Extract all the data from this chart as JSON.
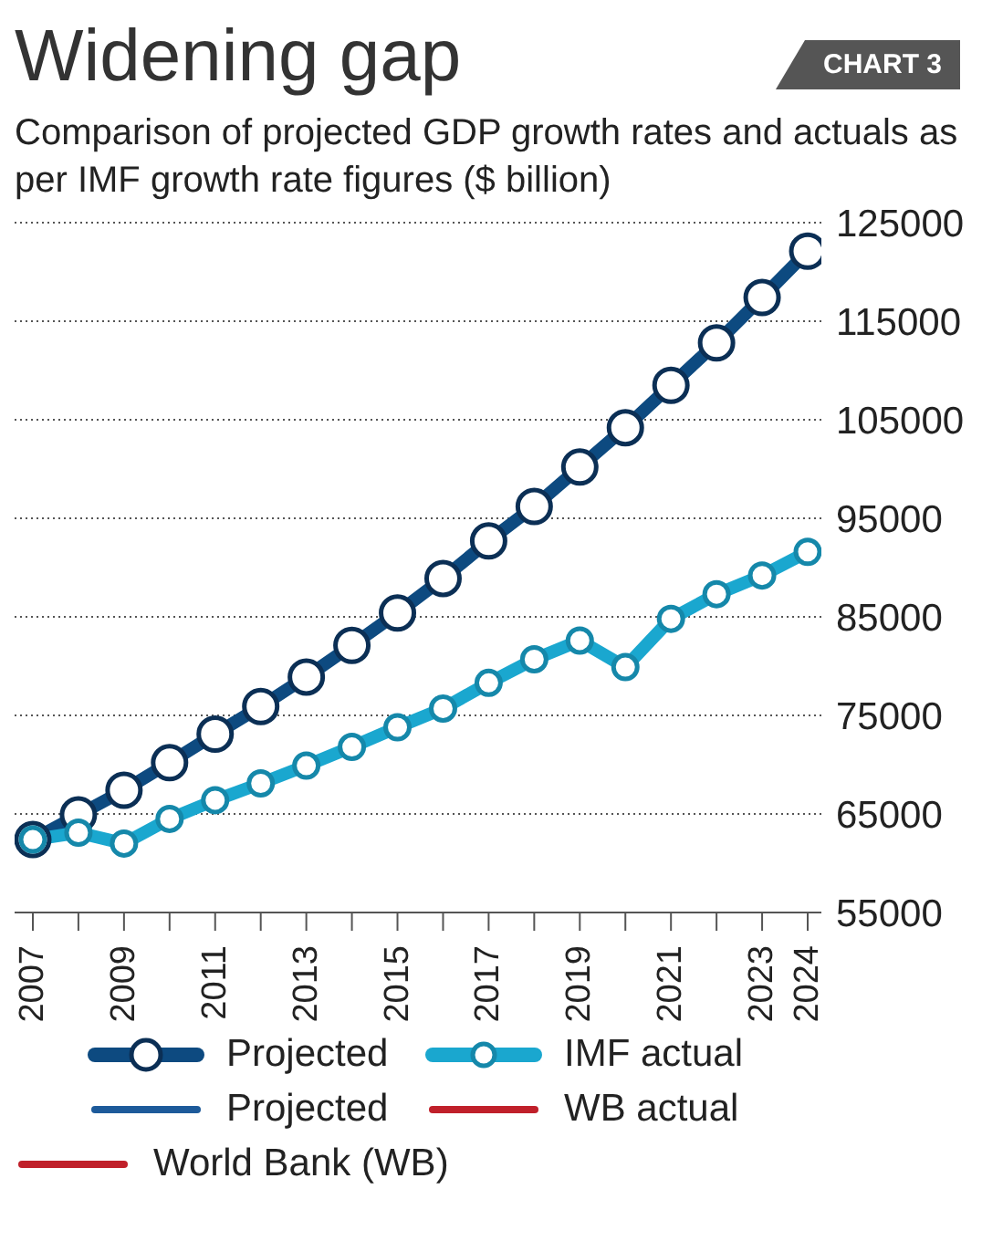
{
  "chart_data": {
    "type": "line",
    "title": "Widening gap",
    "subtitle": "Comparison of projected GDP growth rates and actuals as per IMF growth rate figures ($ billion)",
    "annotations": [
      "CHART 3"
    ],
    "x": [
      2007,
      2008,
      2009,
      2010,
      2011,
      2012,
      2013,
      2014,
      2015,
      2016,
      2017,
      2018,
      2019,
      2020,
      2021,
      2022,
      2023,
      2024
    ],
    "series": [
      {
        "name": "Projected",
        "color": "#0d4a80",
        "values": [
          62400,
          64900,
          67400,
          70200,
          73100,
          75900,
          78900,
          82100,
          85400,
          88900,
          92700,
          96200,
          100200,
          104200,
          108500,
          112800,
          117400,
          122100
        ]
      },
      {
        "name": "IMF actual",
        "color": "#1aa7cf",
        "values": [
          62400,
          63100,
          62000,
          64500,
          66400,
          68100,
          69900,
          71800,
          73800,
          75700,
          78300,
          80700,
          82600,
          79900,
          84800,
          87300,
          89200,
          91600
        ]
      },
      {
        "name": "Projected",
        "color": "#1d5a9a",
        "values": [
          null,
          null,
          null,
          null,
          null,
          null,
          null,
          null,
          null,
          null,
          null,
          null,
          null,
          null,
          null,
          null,
          null,
          null
        ]
      },
      {
        "name": "WB actual",
        "color": "#c0202a",
        "values": [
          null,
          null,
          null,
          null,
          null,
          null,
          null,
          null,
          null,
          null,
          null,
          null,
          null,
          null,
          null,
          null,
          null,
          null
        ]
      },
      {
        "name": "World Bank (WB)",
        "color": "#c0202a",
        "values": [
          null,
          null,
          null,
          null,
          null,
          null,
          null,
          null,
          null,
          null,
          null,
          null,
          null,
          null,
          null,
          null,
          null,
          null
        ]
      }
    ],
    "xlim": [
      2006.6,
      2024.3
    ],
    "xticks": [
      2007,
      {
        "value": 2008,
        "label": null
      },
      2009,
      {
        "value": 2010,
        "label": null
      },
      2011,
      {
        "value": 2012,
        "label": null
      },
      2013,
      {
        "value": 2014,
        "label": null
      },
      2015,
      {
        "value": 2016,
        "label": null
      },
      2017,
      {
        "value": 2018,
        "label": null
      },
      2019,
      {
        "value": 2020,
        "label": null
      },
      2021,
      {
        "value": 2022,
        "label": null
      },
      2023,
      2024
    ],
    "ylim": [
      55000,
      125000
    ],
    "yticks": [
      55000,
      65000,
      75000,
      85000,
      95000,
      105000,
      115000,
      125000
    ],
    "grid": "y",
    "legend": "bottom",
    "marker": "circle",
    "line_style": "solid"
  }
}
